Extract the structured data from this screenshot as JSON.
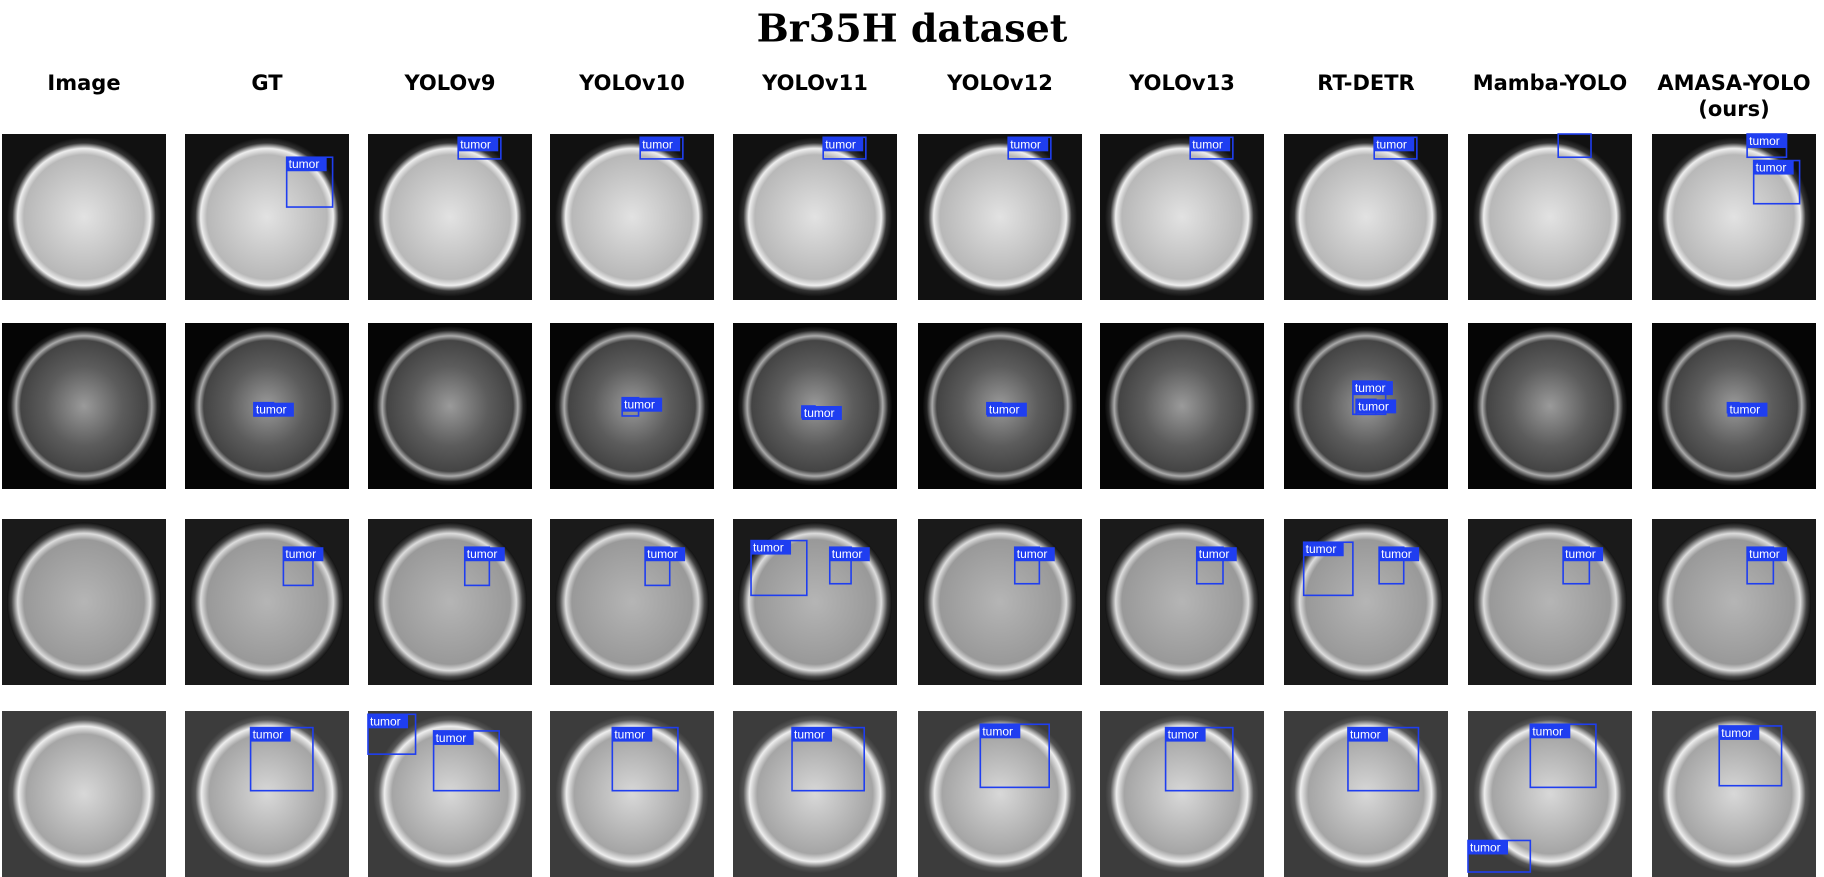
{
  "title": "Br35H dataset",
  "columns": [
    "Image",
    "GT",
    "YOLOv9",
    "YOLOv10",
    "YOLOv11",
    "YOLOv12",
    "YOLOv13",
    "RT-DETR",
    "Mamba-YOLO",
    "AMASA-YOLO (ours)"
  ],
  "rows": [
    [
      [],
      [
        "tumor"
      ],
      [
        "tumor"
      ],
      [
        "tumor"
      ],
      [
        "tumor"
      ],
      [
        "tumor"
      ],
      [
        "tumor"
      ],
      [
        "tumor"
      ],
      [],
      [
        "tumor",
        "tumor"
      ]
    ],
    [
      [],
      [
        "tumor"
      ],
      [],
      [
        "tumor"
      ],
      [
        "tumor"
      ],
      [
        "tumor"
      ],
      [],
      [
        "tumor",
        "tumor"
      ],
      [],
      [
        "tumor"
      ]
    ],
    [
      [],
      [
        "tumor"
      ],
      [
        "tumor"
      ],
      [
        "tumor"
      ],
      [
        "tumor",
        "tumor"
      ],
      [
        "tumor"
      ],
      [
        "tumor"
      ],
      [
        "tumor",
        "tumor"
      ],
      [
        "tumor"
      ],
      [
        "tumor"
      ]
    ],
    [
      [],
      [
        "tumor"
      ],
      [
        "tumor",
        "tumor"
      ],
      [
        "tumor"
      ],
      [
        "tumor"
      ],
      [
        "tumor"
      ],
      [
        "tumor"
      ],
      [
        "tumor"
      ],
      [
        "tumor",
        "tumor"
      ],
      [
        "tumor"
      ]
    ]
  ]
}
